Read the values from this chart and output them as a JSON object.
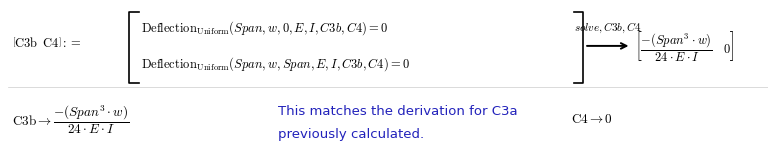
{
  "background_color": "#ffffff",
  "fig_width": 7.76,
  "fig_height": 1.51,
  "dpi": 100,
  "text_color_black": "#000000",
  "text_color_blue": "#2222bb",
  "font_size_main": 9.0,
  "font_size_bottom": 9.5,
  "font_size_arrow": 8.0,
  "font_size_blue": 9.5
}
